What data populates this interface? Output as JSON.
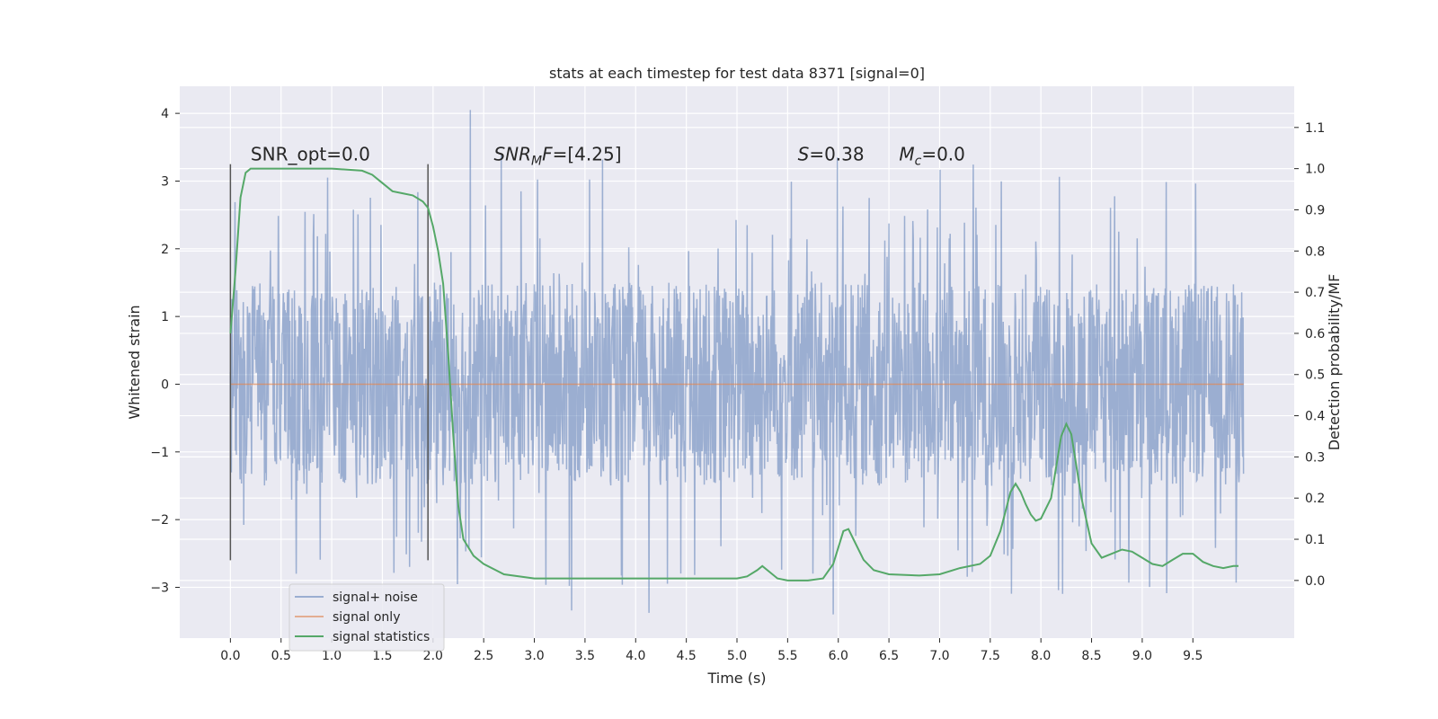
{
  "chart_data": {
    "type": "line",
    "title": "stats at each timestep for test data 8371 [signal=0]",
    "xlabel": "Time (s)",
    "ylabel": "Whitened strain",
    "y2label": "Detection probability/MF",
    "xlim": [
      -0.5,
      10.5
    ],
    "ylim": [
      -3.75,
      4.4
    ],
    "y2lim": [
      -0.14,
      1.2
    ],
    "x_ticks": [
      "0.0",
      "0.5",
      "1.0",
      "1.5",
      "2.0",
      "2.5",
      "3.0",
      "3.5",
      "4.0",
      "4.5",
      "5.0",
      "5.5",
      "6.0",
      "6.5",
      "7.0",
      "7.5",
      "8.0",
      "8.5",
      "9.0",
      "9.5"
    ],
    "y_ticks": [
      "−3",
      "−2",
      "−1",
      "0",
      "1",
      "2",
      "3",
      "4"
    ],
    "y2_ticks": [
      "0.0",
      "0.1",
      "0.2",
      "0.3",
      "0.4",
      "0.5",
      "0.6",
      "0.7",
      "0.8",
      "0.9",
      "1.0",
      "1.1"
    ],
    "grid": true,
    "legend_position": "lower-left",
    "series": [
      {
        "name": "signal+ noise",
        "color": "#4c72b0",
        "axis": "left",
        "x_range": [
          0,
          10
        ],
        "amplitude": 1.5,
        "spike_max": 4.05,
        "spike_min": -3.4
      },
      {
        "name": "signal only",
        "color": "#dd8452",
        "axis": "left",
        "x": [
          0,
          10
        ],
        "values": [
          0,
          0
        ]
      },
      {
        "name": "signal statistics",
        "color": "#55a868",
        "axis": "right",
        "x": [
          0,
          0.05,
          0.1,
          0.15,
          0.2,
          0.3,
          0.5,
          1.0,
          1.3,
          1.4,
          1.5,
          1.6,
          1.7,
          1.8,
          1.9,
          1.95,
          2.0,
          2.05,
          2.1,
          2.15,
          2.2,
          2.25,
          2.3,
          2.4,
          2.5,
          2.7,
          3.0,
          3.5,
          4.0,
          4.5,
          5.0,
          5.1,
          5.2,
          5.25,
          5.3,
          5.4,
          5.5,
          5.7,
          5.85,
          5.95,
          6.05,
          6.1,
          6.15,
          6.25,
          6.35,
          6.5,
          6.8,
          7.0,
          7.2,
          7.4,
          7.5,
          7.6,
          7.7,
          7.75,
          7.8,
          7.85,
          7.9,
          7.95,
          8.0,
          8.1,
          8.2,
          8.25,
          8.3,
          8.4,
          8.5,
          8.6,
          8.7,
          8.8,
          8.9,
          9.0,
          9.1,
          9.2,
          9.3,
          9.4,
          9.5,
          9.6,
          9.7,
          9.8,
          9.9,
          9.95
        ],
        "values": [
          0.6,
          0.75,
          0.93,
          0.99,
          1.0,
          1.0,
          1.0,
          1.0,
          0.995,
          0.985,
          0.965,
          0.945,
          0.94,
          0.935,
          0.92,
          0.905,
          0.86,
          0.8,
          0.72,
          0.55,
          0.35,
          0.18,
          0.1,
          0.06,
          0.04,
          0.015,
          0.005,
          0.005,
          0.005,
          0.005,
          0.005,
          0.01,
          0.025,
          0.035,
          0.025,
          0.005,
          0.0,
          0.0,
          0.005,
          0.04,
          0.12,
          0.125,
          0.1,
          0.05,
          0.025,
          0.015,
          0.012,
          0.015,
          0.03,
          0.04,
          0.06,
          0.12,
          0.215,
          0.235,
          0.215,
          0.185,
          0.16,
          0.145,
          0.15,
          0.2,
          0.35,
          0.38,
          0.355,
          0.2,
          0.09,
          0.055,
          0.065,
          0.075,
          0.07,
          0.055,
          0.04,
          0.035,
          0.05,
          0.065,
          0.065,
          0.045,
          0.035,
          0.03,
          0.035,
          0.035
        ]
      }
    ],
    "vertical_markers": [
      0.0,
      1.95
    ],
    "annotations": [
      {
        "text": "SNR_opt=0.0",
        "x": 0.2,
        "y2": 1.02
      },
      {
        "text": "SNR_MF=[4.25]",
        "x": 2.6,
        "y2": 1.02
      },
      {
        "text": "S=0.38",
        "x": 5.6,
        "y2": 1.02
      },
      {
        "text": "Mc=0.0",
        "x": 6.6,
        "y2": 1.02
      }
    ]
  }
}
